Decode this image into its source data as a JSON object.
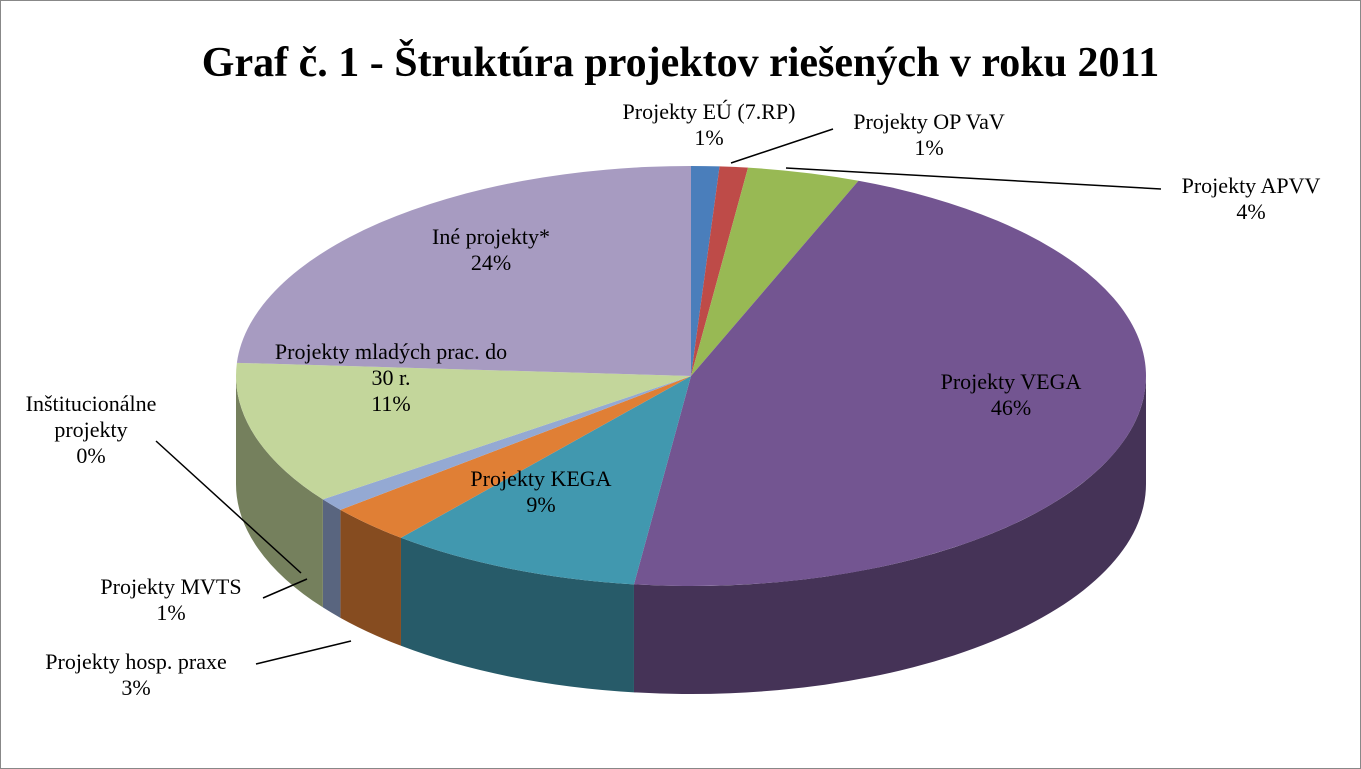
{
  "chart_data": {
    "type": "pie3d",
    "title": "Graf č. 1 - Štruktúra projektov riešených v roku 2011",
    "categories": [
      "Projekty EÚ (7.RP)",
      "Projekty OP VaV",
      "Projekty APVV",
      "Projekty VEGA",
      "Projekty KEGA",
      "Projekty hosp. praxe",
      "Projekty MVTS",
      "Inštitucionálne projekty",
      "Projekty mladých prac. do 30 r.",
      "Iné projekty*"
    ],
    "values": [
      1,
      1,
      4,
      46,
      9,
      3,
      1,
      0,
      11,
      24
    ],
    "value_labels": [
      "1%",
      "1%",
      "4%",
      "46%",
      "9%",
      "3%",
      "1%",
      "0%",
      "11%",
      "24%"
    ],
    "colors": [
      "#4a7ebb",
      "#be4b48",
      "#98b954",
      "#735591",
      "#4198af",
      "#e07f35",
      "#94a9d3",
      "#7ea3c8",
      "#c3d69b",
      "#a79bc1"
    ]
  }
}
